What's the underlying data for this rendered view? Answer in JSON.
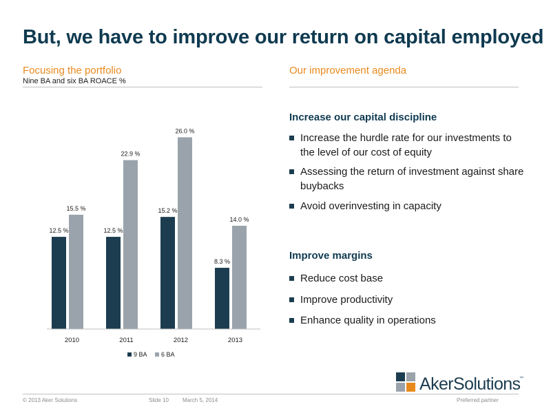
{
  "title": "But, we have to improve our return on capital employed",
  "left": {
    "heading": "Focusing the portfolio",
    "subheading": "Nine BA and six BA ROACE %"
  },
  "right": {
    "heading": "Our improvement agenda",
    "groups": [
      {
        "title": "Increase our capital discipline",
        "bullets": [
          "Increase the hurdle rate for our investments to the level of our cost of equity",
          "Assessing the return of investment against share buybacks",
          "Avoid overinvesting in capacity"
        ]
      },
      {
        "title": "Improve margins",
        "bullets": [
          "Reduce cost base",
          "Improve productivity",
          "Enhance quality in operations"
        ]
      }
    ]
  },
  "chart_data": {
    "type": "bar",
    "categories": [
      "2010",
      "2011",
      "2012",
      "2013"
    ],
    "series": [
      {
        "name": "9 BA",
        "values": [
          12.5,
          12.5,
          15.2,
          8.3
        ],
        "labels": [
          "12.5 %",
          "12.5 %",
          "15.2 %",
          "8.3 %"
        ],
        "color": "#1c3d50"
      },
      {
        "name": "6 BA",
        "values": [
          15.5,
          22.9,
          26.0,
          14.0
        ],
        "labels": [
          "15.5 %",
          "22.9 %",
          "26.0 %",
          "14.0 %"
        ],
        "color": "#9aa3ab"
      }
    ],
    "ylim": [
      0,
      28
    ],
    "grid": false,
    "legend": "bottom"
  },
  "logo": {
    "text": "AkerSolutions",
    "tm": "™"
  },
  "footer": {
    "copyright": "© 2013 Aker Solutions",
    "slide": "Slide 10",
    "date": "March 5, 2014",
    "tagline": "Preferred partner"
  }
}
